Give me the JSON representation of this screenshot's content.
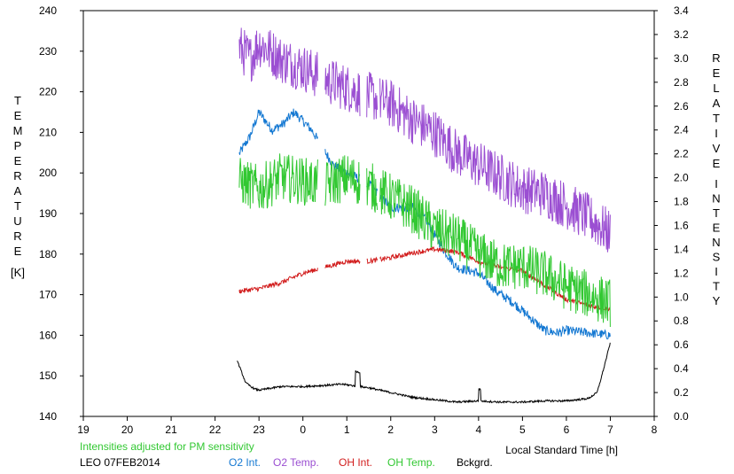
{
  "chart_data": {
    "type": "line",
    "left_axis": {
      "label_letters": [
        "T",
        "E",
        "M",
        "P",
        "E",
        "R",
        "A",
        "T",
        "U",
        "R",
        "E"
      ],
      "unit": "[K]",
      "range": [
        140,
        240
      ],
      "ticks": [
        "140",
        "150",
        "160",
        "170",
        "180",
        "190",
        "200",
        "210",
        "220",
        "230",
        "240"
      ]
    },
    "right_axis": {
      "label_top": [
        "R",
        "E",
        "L",
        "A",
        "T",
        "I",
        "V",
        "E"
      ],
      "label_bottom": [
        "I",
        "N",
        "T",
        "E",
        "N",
        "S",
        "I",
        "T",
        "Y"
      ],
      "range": [
        0.0,
        3.4
      ],
      "ticks": [
        "0.0",
        "0.2",
        "0.4",
        "0.6",
        "0.8",
        "1.0",
        "1.2",
        "1.4",
        "1.6",
        "1.8",
        "2.0",
        "2.2",
        "2.4",
        "2.6",
        "2.8",
        "3.0",
        "3.2",
        "3.4"
      ]
    },
    "x_axis": {
      "label": "Local Standard Time [h]",
      "ticks": [
        "19",
        "20",
        "21",
        "22",
        "23",
        "0",
        "1",
        "2",
        "3",
        "4",
        "5",
        "6",
        "7",
        "8"
      ],
      "range": [
        19,
        32
      ]
    },
    "note": "Intensities adjusted for PM sensitivity",
    "station_label": "LEO 07FEB2014",
    "series": [
      {
        "name": "O2 Int.",
        "axis": "right",
        "color": "#1478d2",
        "points": [
          [
            22.55,
            2.2
          ],
          [
            22.8,
            2.35
          ],
          [
            23.0,
            2.55
          ],
          [
            23.3,
            2.4
          ],
          [
            23.55,
            2.45
          ],
          [
            23.8,
            2.55
          ],
          [
            24.2,
            2.4
          ],
          [
            24.7,
            2.1
          ],
          [
            25.5,
            1.95
          ],
          [
            26.0,
            1.75
          ],
          [
            26.5,
            1.75
          ],
          [
            26.8,
            1.65
          ],
          [
            27.2,
            1.4
          ],
          [
            27.5,
            1.25
          ],
          [
            28.0,
            1.2
          ],
          [
            28.4,
            1.05
          ],
          [
            28.8,
            0.95
          ],
          [
            29.2,
            0.82
          ],
          [
            29.5,
            0.72
          ],
          [
            29.8,
            0.7
          ],
          [
            30.0,
            0.72
          ],
          [
            30.5,
            0.7
          ],
          [
            31.0,
            0.68
          ]
        ]
      },
      {
        "name": "O2 Temp.",
        "axis": "left",
        "color": "#9b4fd2",
        "points": [
          [
            22.55,
            231
          ],
          [
            22.8,
            228
          ],
          [
            23.0,
            232
          ],
          [
            23.5,
            228
          ],
          [
            24.0,
            226
          ],
          [
            24.5,
            223
          ],
          [
            25.0,
            221
          ],
          [
            25.5,
            219
          ],
          [
            26.0,
            217
          ],
          [
            26.5,
            213
          ],
          [
            27.0,
            210
          ],
          [
            27.5,
            205
          ],
          [
            28.0,
            202
          ],
          [
            28.5,
            199
          ],
          [
            29.0,
            196
          ],
          [
            29.5,
            195
          ],
          [
            30.0,
            192
          ],
          [
            30.5,
            189
          ],
          [
            31.0,
            185
          ]
        ]
      },
      {
        "name": "OH Int.",
        "axis": "right",
        "color": "#d21e1e",
        "points": [
          [
            22.55,
            1.05
          ],
          [
            23.0,
            1.07
          ],
          [
            23.5,
            1.12
          ],
          [
            24.0,
            1.2
          ],
          [
            24.5,
            1.25
          ],
          [
            25.0,
            1.3
          ],
          [
            25.5,
            1.3
          ],
          [
            26.0,
            1.33
          ],
          [
            26.5,
            1.37
          ],
          [
            27.0,
            1.4
          ],
          [
            27.5,
            1.38
          ],
          [
            28.0,
            1.3
          ],
          [
            28.5,
            1.25
          ],
          [
            29.0,
            1.22
          ],
          [
            29.5,
            1.1
          ],
          [
            30.0,
            0.98
          ],
          [
            30.5,
            0.93
          ],
          [
            31.0,
            0.9
          ]
        ]
      },
      {
        "name": "OH Temp.",
        "axis": "left",
        "color": "#32c832",
        "points": [
          [
            22.55,
            198
          ],
          [
            23.0,
            196
          ],
          [
            23.5,
            199
          ],
          [
            24.0,
            198
          ],
          [
            24.5,
            197
          ],
          [
            25.0,
            199
          ],
          [
            25.5,
            197
          ],
          [
            26.0,
            194
          ],
          [
            26.5,
            191
          ],
          [
            27.0,
            186
          ],
          [
            27.5,
            184
          ],
          [
            28.0,
            180
          ],
          [
            28.5,
            177
          ],
          [
            29.0,
            177
          ],
          [
            29.5,
            175
          ],
          [
            30.0,
            172
          ],
          [
            30.5,
            170
          ],
          [
            31.0,
            168
          ]
        ]
      },
      {
        "name": "Bckgrd.",
        "axis": "right",
        "color": "#000000",
        "points": [
          [
            22.5,
            0.47
          ],
          [
            22.7,
            0.28
          ],
          [
            22.9,
            0.23
          ],
          [
            23.0,
            0.22
          ],
          [
            23.5,
            0.25
          ],
          [
            24.0,
            0.25
          ],
          [
            24.5,
            0.26
          ],
          [
            24.9,
            0.27
          ],
          [
            25.1,
            0.26
          ],
          [
            25.5,
            0.24
          ],
          [
            26.0,
            0.2
          ],
          [
            26.5,
            0.16
          ],
          [
            27.0,
            0.14
          ],
          [
            27.5,
            0.12
          ],
          [
            28.0,
            0.13
          ],
          [
            28.5,
            0.12
          ],
          [
            29.0,
            0.12
          ],
          [
            29.5,
            0.13
          ],
          [
            30.0,
            0.13
          ],
          [
            30.5,
            0.15
          ],
          [
            30.7,
            0.2
          ],
          [
            30.85,
            0.4
          ],
          [
            31.0,
            0.62
          ]
        ]
      }
    ]
  }
}
